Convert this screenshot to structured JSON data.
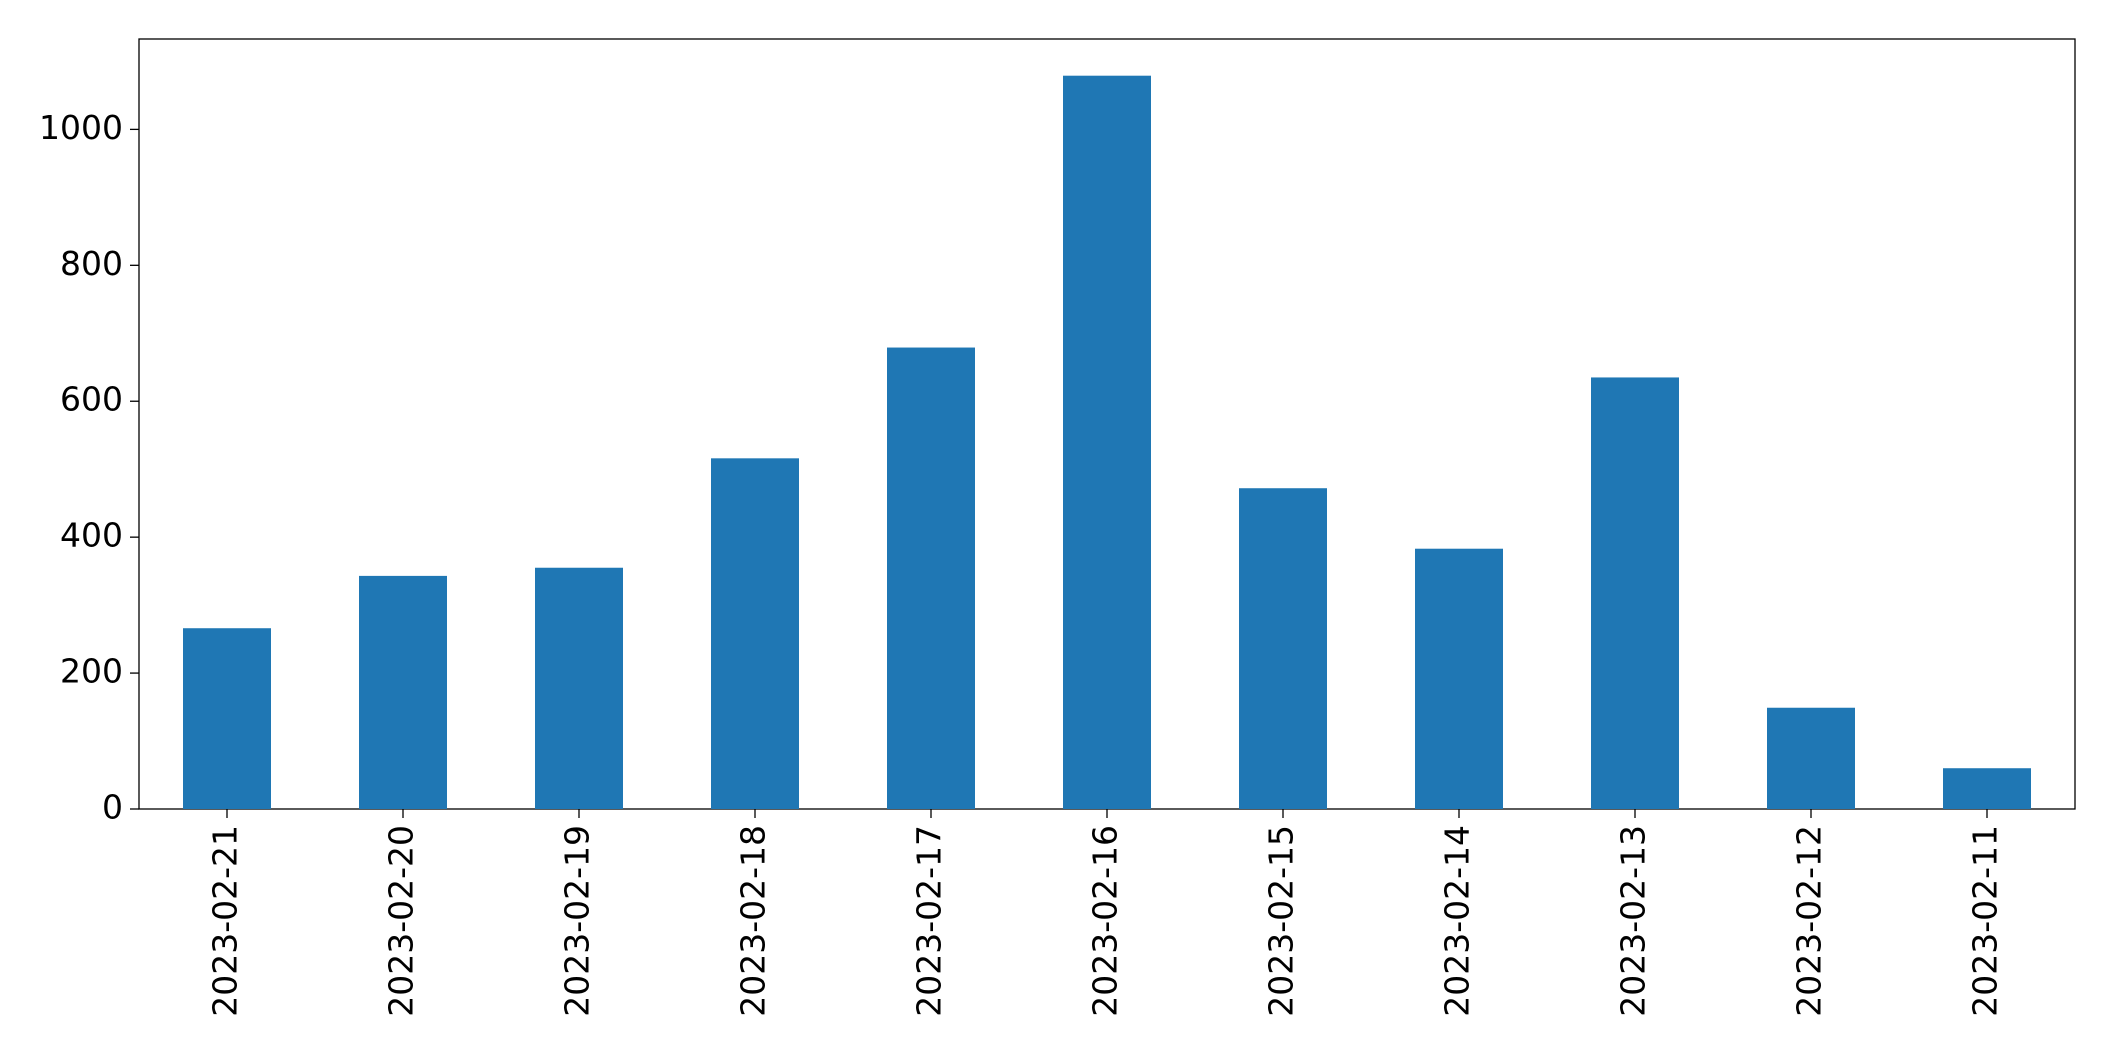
{
  "chart_data": {
    "type": "bar",
    "categories": [
      "2023-02-21",
      "2023-02-20",
      "2023-02-19",
      "2023-02-18",
      "2023-02-17",
      "2023-02-16",
      "2023-02-15",
      "2023-02-14",
      "2023-02-13",
      "2023-02-12",
      "2023-02-11"
    ],
    "values": [
      266,
      343,
      355,
      516,
      679,
      1079,
      472,
      383,
      635,
      149,
      60
    ],
    "color": "#1f77b4",
    "ylim": [
      0,
      1133
    ],
    "yticks": [
      0,
      200,
      400,
      600,
      800,
      1000
    ],
    "grid": false
  }
}
